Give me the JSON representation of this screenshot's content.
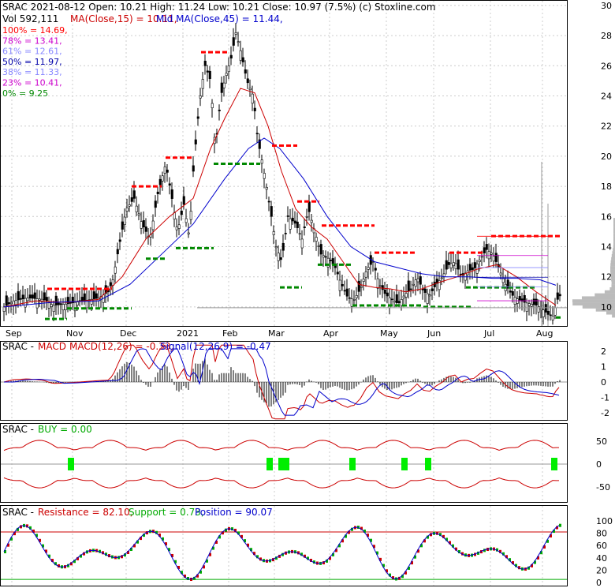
{
  "header": {
    "symbol": "SRAC",
    "line1": "SRAC  2021-08-12 Open: 10.21  High: 11.24  Low: 10.21  Close: 10.97 (7.5%) (c) Stoxline.com",
    "vol": "Vol 592,111",
    "ma15": "MA(Close,15) = 10.11,",
    "ma45": "Mid MA(Close,45) = 11.44,"
  },
  "fib_levels": [
    {
      "label": "100% = 14.69,",
      "color": "#ff0000"
    },
    {
      "label": "78% = 13.41,",
      "color": "#cc00cc"
    },
    {
      "label": "61% = 12.61,",
      "color": "#8888ff"
    },
    {
      "label": "50% = 11.97,",
      "color": "#0000aa"
    },
    {
      "label": "38% = 11.33,",
      "color": "#8888ff"
    },
    {
      "label": "23% = 10.41,",
      "color": "#cc00cc"
    },
    {
      "label": "0% = 9.25",
      "color": "#008800"
    }
  ],
  "panels": {
    "macd": {
      "prefix": "SRAC - ",
      "title": "MACD",
      "label": "MACD(12,26) = -0.33,",
      "signal": "Signal(12,26,9) = -0.47"
    },
    "buy": {
      "prefix": "SRAC - ",
      "label": "BUY = 0.00"
    },
    "srp": {
      "prefix": "SRAC - ",
      "resistance": "Resistance = 82.10,",
      "support": "Support = 0.73,",
      "position": "Position = 90.07"
    }
  },
  "chart_data": {
    "type": "candlestick",
    "x_ticks": [
      "Sep",
      "Nov",
      "Dec",
      "2021",
      "Feb",
      "Mar",
      "Apr",
      "May",
      "Jun",
      "Jul",
      "Aug"
    ],
    "price_axis": {
      "ticks": [
        10,
        12,
        14,
        16,
        18,
        20,
        22,
        24,
        26,
        28,
        30
      ],
      "ylim": [
        9,
        30
      ]
    },
    "price_path": [
      [
        0,
        10.0
      ],
      [
        12,
        10.4
      ],
      [
        30,
        10.6
      ],
      [
        50,
        10.5
      ],
      [
        62,
        10.1
      ],
      [
        80,
        10.2
      ],
      [
        100,
        10.4
      ],
      [
        120,
        10.6
      ],
      [
        132,
        11.0
      ],
      [
        138,
        11.8
      ],
      [
        145,
        13.8
      ],
      [
        155,
        16.5
      ],
      [
        165,
        17.2
      ],
      [
        175,
        15.5
      ],
      [
        185,
        14.5
      ],
      [
        195,
        17.5
      ],
      [
        205,
        19.5
      ],
      [
        212,
        17.5
      ],
      [
        220,
        15.0
      ],
      [
        228,
        16.8
      ],
      [
        235,
        14.6
      ],
      [
        240,
        19.0
      ],
      [
        245,
        22.0
      ],
      [
        250,
        24.5
      ],
      [
        255,
        26.0
      ],
      [
        262,
        25.0
      ],
      [
        268,
        20.5
      ],
      [
        275,
        24.0
      ],
      [
        282,
        25.5
      ],
      [
        288,
        26.5
      ],
      [
        294,
        28.2
      ],
      [
        300,
        27.0
      ],
      [
        308,
        25.0
      ],
      [
        316,
        24.0
      ],
      [
        322,
        21.0
      ],
      [
        328,
        19.5
      ],
      [
        336,
        17.0
      ],
      [
        345,
        14.0
      ],
      [
        352,
        13.0
      ],
      [
        360,
        16.0
      ],
      [
        370,
        15.5
      ],
      [
        378,
        14.5
      ],
      [
        386,
        16.5
      ],
      [
        394,
        15.0
      ],
      [
        402,
        13.5
      ],
      [
        412,
        13.2
      ],
      [
        420,
        12.6
      ],
      [
        428,
        11.5
      ],
      [
        436,
        10.6
      ],
      [
        444,
        10.5
      ],
      [
        452,
        11.2
      ],
      [
        460,
        12.5
      ],
      [
        468,
        13.0
      ],
      [
        476,
        11.5
      ],
      [
        484,
        10.8
      ],
      [
        492,
        10.5
      ],
      [
        500,
        10.2
      ],
      [
        508,
        10.8
      ],
      [
        516,
        11.2
      ],
      [
        524,
        12.0
      ],
      [
        532,
        11.0
      ],
      [
        540,
        10.8
      ],
      [
        548,
        11.5
      ],
      [
        556,
        12.0
      ],
      [
        564,
        12.8
      ],
      [
        572,
        13.0
      ],
      [
        580,
        12.0
      ],
      [
        588,
        12.4
      ],
      [
        596,
        12.5
      ],
      [
        604,
        13.2
      ],
      [
        612,
        13.8
      ],
      [
        620,
        13.5
      ],
      [
        628,
        12.5
      ],
      [
        636,
        11.5
      ],
      [
        644,
        10.8
      ],
      [
        652,
        10.5
      ],
      [
        660,
        10.3
      ],
      [
        668,
        10.2
      ],
      [
        676,
        10.1
      ],
      [
        684,
        9.8
      ],
      [
        690,
        9.5
      ],
      [
        696,
        9.4
      ],
      [
        702,
        10.5
      ],
      [
        708,
        10.97
      ]
    ],
    "ma15_path": [
      [
        0,
        10.0
      ],
      [
        40,
        10.4
      ],
      [
        80,
        10.3
      ],
      [
        120,
        10.5
      ],
      [
        150,
        12.0
      ],
      [
        180,
        14.5
      ],
      [
        210,
        16.0
      ],
      [
        240,
        17.2
      ],
      [
        262,
        20.5
      ],
      [
        280,
        22.5
      ],
      [
        300,
        24.5
      ],
      [
        318,
        24.2
      ],
      [
        335,
        22.0
      ],
      [
        352,
        19.0
      ],
      [
        370,
        16.5
      ],
      [
        390,
        15.3
      ],
      [
        410,
        14.5
      ],
      [
        430,
        13.0
      ],
      [
        450,
        11.5
      ],
      [
        470,
        11.3
      ],
      [
        490,
        11.2
      ],
      [
        510,
        11.0
      ],
      [
        530,
        11.2
      ],
      [
        550,
        11.6
      ],
      [
        575,
        12.0
      ],
      [
        600,
        12.5
      ],
      [
        625,
        12.8
      ],
      [
        650,
        12.0
      ],
      [
        675,
        11.0
      ],
      [
        700,
        10.11
      ]
    ],
    "ma45_path": [
      [
        0,
        10.0
      ],
      [
        60,
        10.3
      ],
      [
        120,
        10.4
      ],
      [
        160,
        11.5
      ],
      [
        200,
        13.5
      ],
      [
        240,
        15.5
      ],
      [
        280,
        18.5
      ],
      [
        310,
        20.5
      ],
      [
        330,
        21.2
      ],
      [
        350,
        20.5
      ],
      [
        380,
        18.5
      ],
      [
        410,
        16.0
      ],
      [
        440,
        14.0
      ],
      [
        470,
        13.0
      ],
      [
        500,
        12.6
      ],
      [
        530,
        12.2
      ],
      [
        560,
        12.0
      ],
      [
        590,
        12.0
      ],
      [
        620,
        11.9
      ],
      [
        650,
        11.9
      ],
      [
        680,
        11.8
      ],
      [
        700,
        11.44
      ]
    ],
    "resistance_segments": [
      [
        55,
        137,
        11.2
      ],
      [
        162,
        200,
        18.0
      ],
      [
        205,
        240,
        19.9
      ],
      [
        250,
        285,
        26.9
      ],
      [
        340,
        372,
        20.7
      ],
      [
        372,
        400,
        17.0
      ],
      [
        403,
        470,
        15.4
      ],
      [
        470,
        522,
        13.6
      ],
      [
        565,
        610,
        13.6
      ],
      [
        618,
        708,
        14.7
      ]
    ],
    "support_segments": [
      [
        52,
        80,
        9.2
      ],
      [
        80,
        162,
        9.9
      ],
      [
        180,
        205,
        13.2
      ],
      [
        218,
        266,
        13.9
      ],
      [
        266,
        325,
        19.5
      ],
      [
        350,
        378,
        11.3
      ],
      [
        398,
        442,
        12.8
      ],
      [
        442,
        532,
        10.1
      ],
      [
        532,
        592,
        10.0
      ],
      [
        586,
        675,
        11.3
      ],
      [
        700,
        708,
        9.3
      ]
    ],
    "volume_spike_x": [
      692,
      700
    ],
    "macd_axis": {
      "ticks": [
        2,
        1,
        0,
        -1,
        -2
      ],
      "ylim": [
        -2.6,
        2.8
      ]
    },
    "buy_axis": {
      "ticks": [
        50,
        0,
        -50
      ],
      "ylim": [
        -70,
        70
      ]
    },
    "srp_axis": {
      "ticks": [
        100,
        80,
        60,
        40,
        20,
        0
      ],
      "ylim": [
        0,
        105
      ]
    },
    "buy_signals_x": [
      85,
      337,
      352,
      358,
      442,
      508,
      538,
      698
    ],
    "resistance_line": 82.1
  }
}
